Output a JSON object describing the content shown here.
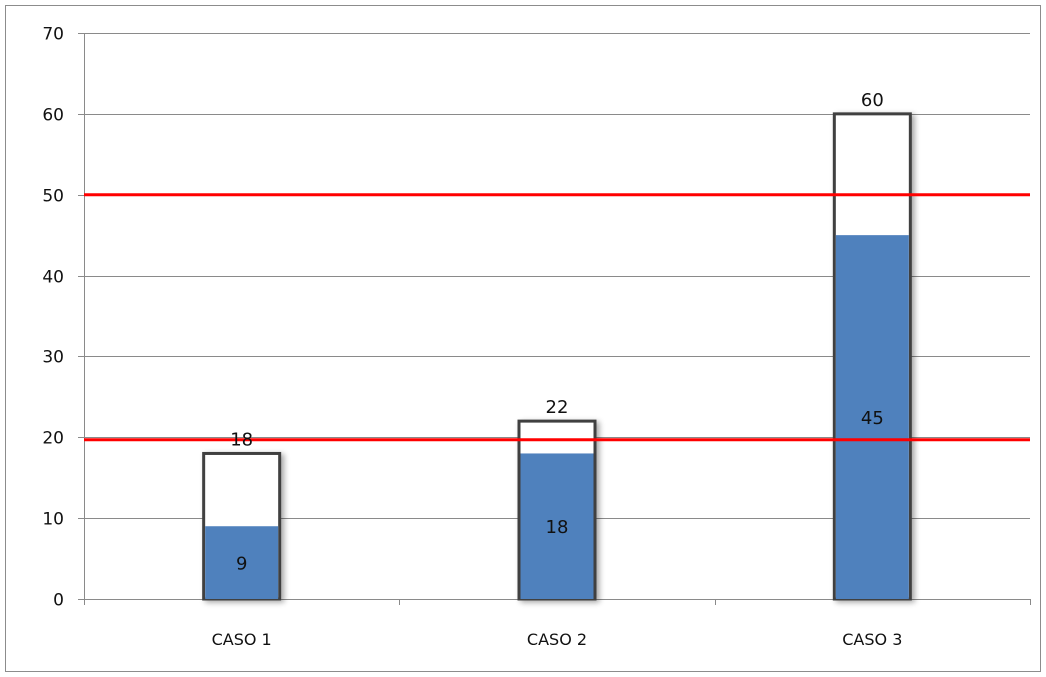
{
  "chart_data": {
    "type": "bar",
    "categories": [
      "CASO 1",
      "CASO 2",
      "CASO 3"
    ],
    "series": [
      {
        "values": [
          18,
          22,
          60
        ],
        "color": "#ffffff",
        "outline": "#404040"
      },
      {
        "values": [
          9,
          18,
          45
        ],
        "color": "#4f81bd"
      }
    ],
    "value_labels": {
      "outer": [
        "18",
        "22",
        "60"
      ],
      "inner": [
        "9",
        "18",
        "45"
      ]
    },
    "reference_lines": [
      {
        "value": 50,
        "color": "#ff0000"
      },
      {
        "value": 19.7,
        "color": "#ff0000"
      }
    ],
    "yticks": [
      "0",
      "10",
      "20",
      "30",
      "40",
      "50",
      "60",
      "70"
    ],
    "ylim": [
      0,
      70
    ],
    "grid": true,
    "legend": "none",
    "title": "",
    "xlabel": "",
    "ylabel": ""
  }
}
